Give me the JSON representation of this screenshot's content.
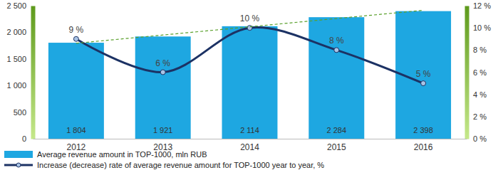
{
  "chart_data": {
    "type": "bar",
    "categories": [
      "2012",
      "2013",
      "2014",
      "2015",
      "2016"
    ],
    "series": [
      {
        "name": "Average revenue amount in TOP-1000, mln RUB",
        "type": "bar",
        "color": "#1ea7e1",
        "values": [
          1804,
          1921,
          2114,
          2284,
          2398
        ],
        "value_labels": [
          "1 804",
          "1 921",
          "2 114",
          "2 284",
          "2 398"
        ],
        "data_labels": true
      },
      {
        "name": "Increase (decrease) rate of average revenue amount for TOP-1000 year to year, %",
        "type": "line",
        "axis": "y2",
        "color": "#1c3264",
        "marker": "circle",
        "values": [
          9,
          6,
          10,
          8,
          5
        ],
        "value_labels": [
          "9 %",
          "6 %",
          "10 %",
          "8 %",
          "5 %"
        ],
        "data_labels": true
      },
      {
        "type": "line",
        "color": "#5aa02c",
        "line_style": "dashed",
        "values": [
          1794,
          1949,
          2104,
          2259,
          2414
        ],
        "data_labels": false
      }
    ],
    "ylim": [
      0,
      2500
    ],
    "yticks": [
      0,
      500,
      {
        "value": 1000,
        "label": "1 000"
      },
      {
        "value": 1500,
        "label": "1 500"
      },
      {
        "value": 2000,
        "label": "2 000"
      },
      {
        "value": 2500,
        "label": "2 500"
      }
    ],
    "y2lim": [
      0,
      12
    ],
    "y2ticks": [
      {
        "value": 0,
        "label": "0 %"
      },
      {
        "value": 2,
        "label": "2 %"
      },
      {
        "value": 4,
        "label": "4 %"
      },
      {
        "value": 6,
        "label": "6 %"
      },
      {
        "value": 8,
        "label": "8 %"
      },
      {
        "value": 10,
        "label": "10 %"
      },
      {
        "value": 12,
        "label": "12 %"
      }
    ],
    "grid": false,
    "legend": "bottom"
  }
}
